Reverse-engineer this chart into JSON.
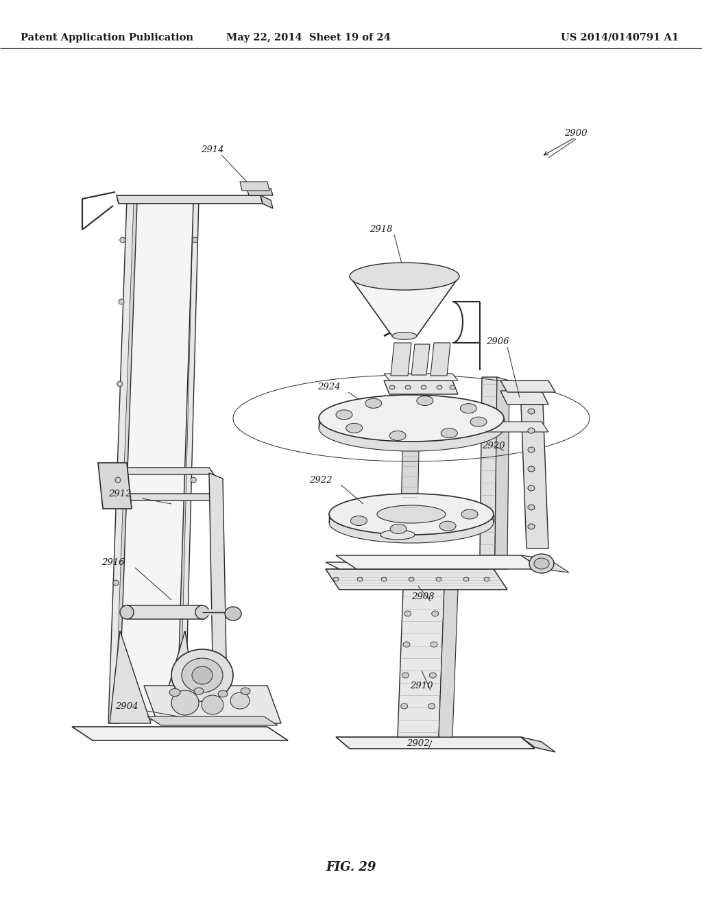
{
  "background_color": "#ffffff",
  "header_left": "Patent Application Publication",
  "header_center": "May 22, 2014  Sheet 19 of 24",
  "header_right": "US 2014/0140791 A1",
  "figure_caption": "FIG. 29",
  "line_color": "#2a2a2a",
  "text_color": "#1a1a1a",
  "header_fontsize": 10.5,
  "ref_fontsize": 9.5,
  "caption_fontsize": 13,
  "page_width": 10.24,
  "page_height": 13.2,
  "dpi": 100
}
